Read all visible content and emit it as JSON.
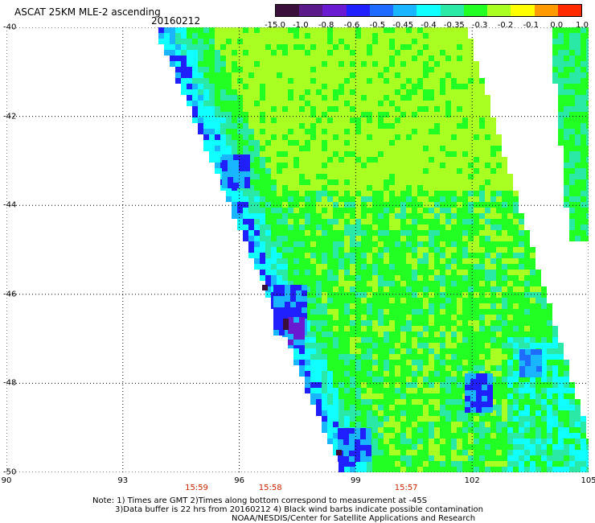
{
  "header": {
    "title": "ASCAT 25KM MLE-2 ascending",
    "date": "20160212"
  },
  "colorbar": {
    "labels": [
      "-15.0",
      "-1.0",
      "-0.8",
      "-0.6",
      "-0.5",
      "-0.45",
      "-0.4",
      "-0.35",
      "-0.3",
      "-0.2",
      "-0.1",
      "0.0",
      "1.0"
    ],
    "colors": [
      "#3a0f3a",
      "#5a1a8a",
      "#6a1ad0",
      "#2020ff",
      "#1f6bff",
      "#19b5ff",
      "#10ffff",
      "#2ae8a5",
      "#22ff22",
      "#aaff22",
      "#ffff00",
      "#ff9a00",
      "#ff2a00"
    ]
  },
  "map": {
    "lat_labels": [
      "-40",
      "-42",
      "-44",
      "-46",
      "-48",
      "-50"
    ],
    "lon_labels": [
      "90",
      "93",
      "96",
      "99",
      "102",
      "105"
    ],
    "time_labels": [
      {
        "text": "15:59",
        "lon": 94.9
      },
      {
        "text": "15:58",
        "lon": 96.8
      },
      {
        "text": "15:57",
        "lon": 100.3
      }
    ]
  },
  "notes": {
    "line1": "Note: 1) Times are GMT 2)Times along bottom correspond to measurement at -45S",
    "line2": "3)Data buffer is 22 hrs from 20160212 4) Black wind barbs indicate possible contamination",
    "line3": "NOAA/NESDIS/Center for Satellite Applications and Research"
  }
}
